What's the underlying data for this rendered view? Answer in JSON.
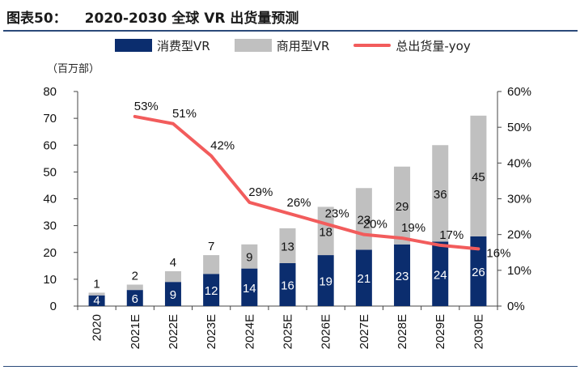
{
  "header": {
    "figure_no": "图表50：",
    "title": "2020-2030 全球 VR 出货量预测"
  },
  "colors": {
    "consumer": "#0b2d6e",
    "commercial": "#c0c0c0",
    "yoy": "#f25c5c",
    "rule": "#2b4a7a"
  },
  "chart_data": {
    "type": "bar",
    "stacked": true,
    "unit_label": "（百万部）",
    "categories": [
      "2020",
      "2021E",
      "2022E",
      "2023E",
      "2024E",
      "2025E",
      "2026E",
      "2027E",
      "2028E",
      "2029E",
      "2030E"
    ],
    "series": [
      {
        "name": "消费型VR",
        "values": [
          4,
          6,
          9,
          12,
          14,
          16,
          19,
          21,
          23,
          24,
          26
        ]
      },
      {
        "name": "商用型VR",
        "values": [
          1,
          2,
          4,
          7,
          9,
          13,
          18,
          23,
          29,
          36,
          45
        ]
      }
    ],
    "line_series": {
      "name": "总出货量-yoy",
      "axis": "right",
      "values": [
        null,
        53,
        51,
        42,
        29,
        26,
        23,
        20,
        19,
        17,
        16
      ],
      "labels": [
        "",
        "53%",
        "51%",
        "42%",
        "29%",
        "26%",
        "23%",
        "20%",
        "19%",
        "17%",
        "16%"
      ]
    },
    "y_left": {
      "min": 0,
      "max": 80,
      "step": 10,
      "ticks": [
        "0",
        "10",
        "20",
        "30",
        "40",
        "50",
        "60",
        "70",
        "80"
      ]
    },
    "y_right": {
      "min": 0,
      "max": 60,
      "step": 10,
      "ticks": [
        "0%",
        "10%",
        "20%",
        "30%",
        "40%",
        "50%",
        "60%"
      ]
    },
    "grid": false,
    "legend_position": "top"
  }
}
